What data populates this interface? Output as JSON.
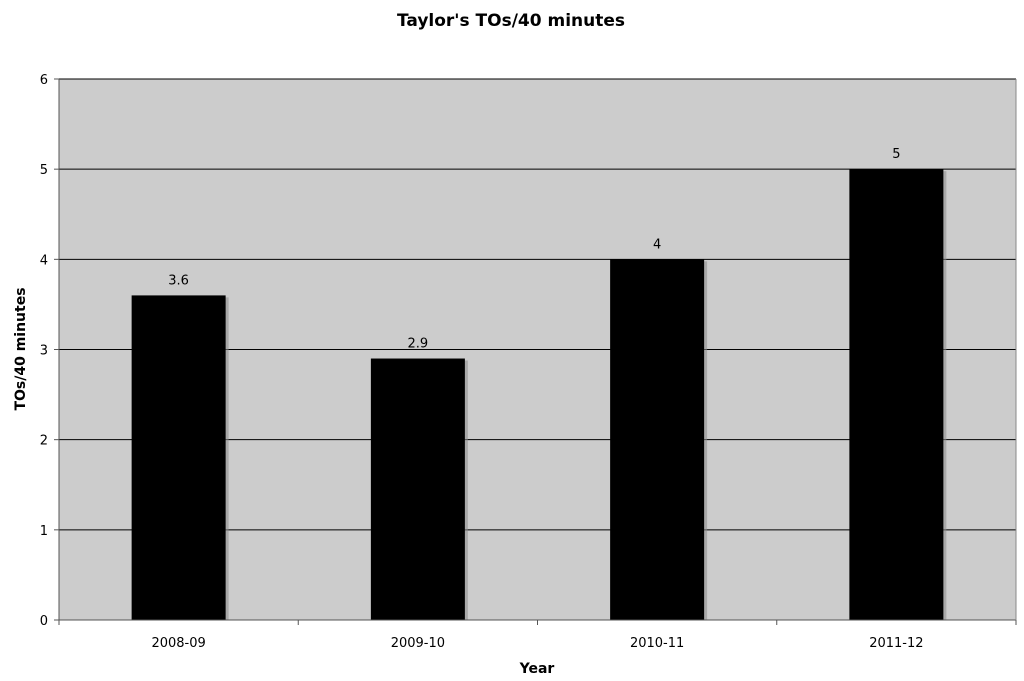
{
  "chart_data": {
    "type": "bar",
    "title": "Taylor's TOs/40 minutes",
    "xlabel": "Year",
    "ylabel": "TOs/40 minutes",
    "categories": [
      "2008-09",
      "2009-10",
      "2010-11",
      "2011-12"
    ],
    "values": [
      3.6,
      2.9,
      4,
      5
    ],
    "data_labels": [
      "3.6",
      "2.9",
      "4",
      "5"
    ],
    "ylim": [
      0,
      6
    ],
    "yticks": [
      0,
      1,
      2,
      3,
      4,
      5,
      6
    ],
    "ytick_labels": [
      "0",
      "1",
      "2",
      "3",
      "4",
      "5",
      "6"
    ],
    "grid": true,
    "legend": "none",
    "colors": {
      "plot_background": "#cccccc",
      "bar": "#000000",
      "bar_shadow": "#8c8c8c",
      "gridline": "#000000",
      "axis": "#555555"
    }
  }
}
